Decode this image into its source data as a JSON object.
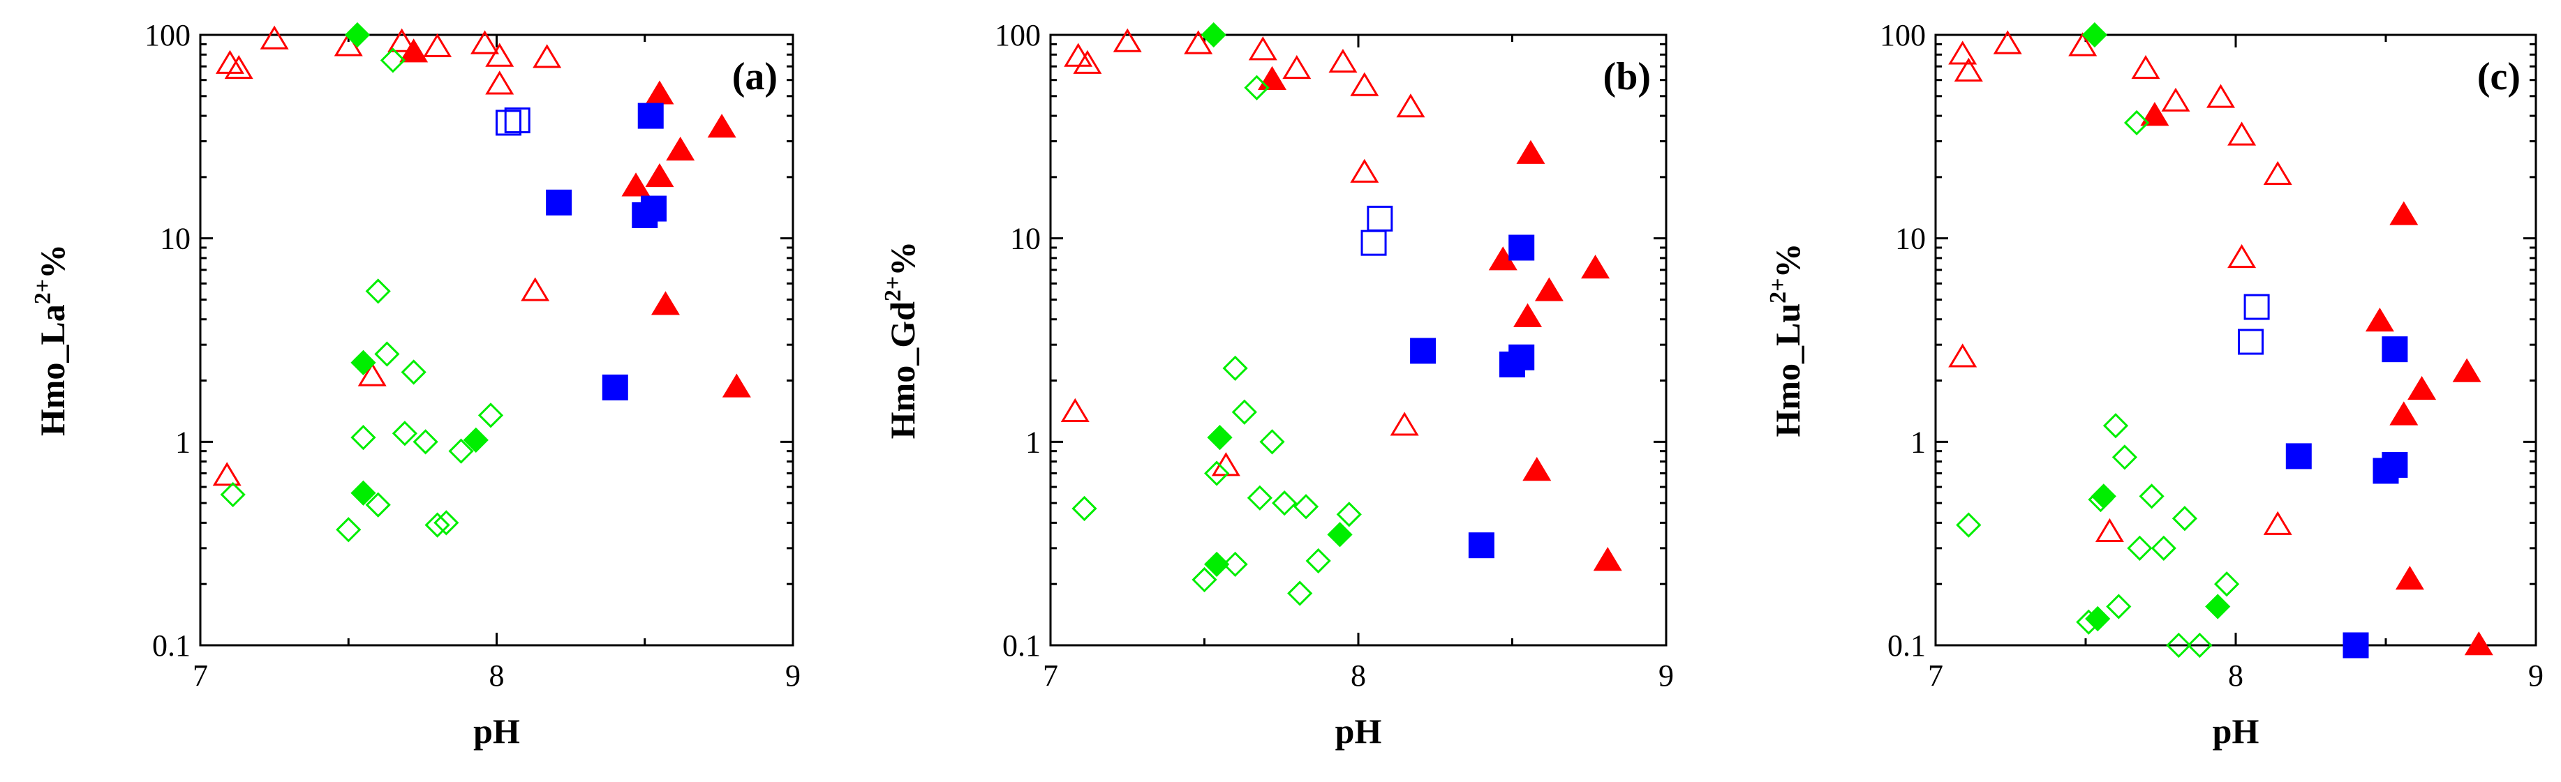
{
  "chart_data": [
    {
      "type": "scatter",
      "panel_label": "(a)",
      "xlabel": "pH",
      "ylabel_main": "Hmo_La",
      "ylabel_sup": "2+",
      "ylabel_suffix": "%",
      "xlim": [
        7,
        9
      ],
      "ylim": [
        0.1,
        100
      ],
      "yscale": "log",
      "x_ticks": [
        7,
        8,
        9
      ],
      "y_ticks": [
        0.1,
        1,
        10,
        100
      ],
      "x_tick_labels": [
        "7",
        "8",
        "9"
      ],
      "y_tick_labels": [
        "0.1",
        "1",
        "10",
        "100"
      ],
      "series": [
        {
          "name": "open-red-triangle",
          "marker": "triangle",
          "filled": false,
          "color": "#ff0000",
          "points": [
            [
              7.1,
              72
            ],
            [
              7.13,
              68
            ],
            [
              7.25,
              95
            ],
            [
              7.5,
              88
            ],
            [
              7.68,
              92
            ],
            [
              7.8,
              87
            ],
            [
              7.96,
              90
            ],
            [
              8.01,
              78
            ],
            [
              8.01,
              57
            ],
            [
              8.17,
              77
            ],
            [
              8.13,
              5.5
            ],
            [
              7.58,
              2.1
            ],
            [
              7.09,
              0.68
            ]
          ]
        },
        {
          "name": "filled-red-triangle",
          "marker": "triangle",
          "filled": true,
          "color": "#ff0000",
          "points": [
            [
              7.72,
              82
            ],
            [
              8.55,
              51
            ],
            [
              8.47,
              18
            ],
            [
              8.55,
              20
            ],
            [
              8.62,
              27
            ],
            [
              8.76,
              35
            ],
            [
              8.57,
              4.7
            ],
            [
              8.81,
              1.85
            ]
          ]
        },
        {
          "name": "open-blue-square",
          "marker": "square",
          "filled": false,
          "color": "#0000ff",
          "points": [
            [
              8.04,
              37
            ],
            [
              8.07,
              38
            ]
          ]
        },
        {
          "name": "filled-blue-square",
          "marker": "square",
          "filled": true,
          "color": "#0000ff",
          "points": [
            [
              8.52,
              40
            ],
            [
              8.21,
              15
            ],
            [
              8.5,
              13
            ],
            [
              8.53,
              14
            ],
            [
              8.4,
              1.85
            ]
          ]
        },
        {
          "name": "open-green-diamond",
          "marker": "diamond",
          "filled": false,
          "color": "#00ee00",
          "points": [
            [
              7.65,
              75
            ],
            [
              7.6,
              5.5
            ],
            [
              7.63,
              2.7
            ],
            [
              7.72,
              2.2
            ],
            [
              7.55,
              1.05
            ],
            [
              7.69,
              1.1
            ],
            [
              7.76,
              1.0
            ],
            [
              7.98,
              1.35
            ],
            [
              7.88,
              0.9
            ],
            [
              7.11,
              0.55
            ],
            [
              7.5,
              0.37
            ],
            [
              7.6,
              0.49
            ],
            [
              7.8,
              0.39
            ],
            [
              7.83,
              0.4
            ]
          ]
        },
        {
          "name": "filled-green-diamond",
          "marker": "diamond",
          "filled": true,
          "color": "#00ee00",
          "points": [
            [
              7.53,
              100
            ],
            [
              7.55,
              2.45
            ],
            [
              7.93,
              1.02
            ],
            [
              7.55,
              0.56
            ]
          ]
        }
      ]
    },
    {
      "type": "scatter",
      "panel_label": "(b)",
      "xlabel": "pH",
      "ylabel_main": "Hmo_Gd",
      "ylabel_sup": "2+",
      "ylabel_suffix": "%",
      "xlim": [
        7,
        9
      ],
      "ylim": [
        0.1,
        100
      ],
      "yscale": "log",
      "x_ticks": [
        7,
        8,
        9
      ],
      "y_ticks": [
        0.1,
        1,
        10,
        100
      ],
      "x_tick_labels": [
        "7",
        "8",
        "9"
      ],
      "y_tick_labels": [
        "0.1",
        "1",
        "10",
        "100"
      ],
      "series": [
        {
          "name": "open-red-triangle",
          "marker": "triangle",
          "filled": false,
          "color": "#ff0000",
          "points": [
            [
              7.09,
              78
            ],
            [
              7.12,
              72
            ],
            [
              7.25,
              92
            ],
            [
              7.48,
              90
            ],
            [
              7.69,
              84
            ],
            [
              7.8,
              68
            ],
            [
              7.95,
              73
            ],
            [
              8.02,
              56
            ],
            [
              8.17,
              44
            ],
            [
              8.02,
              21
            ],
            [
              8.15,
              1.2
            ],
            [
              7.57,
              0.76
            ],
            [
              7.08,
              1.4
            ]
          ]
        },
        {
          "name": "filled-red-triangle",
          "marker": "triangle",
          "filled": true,
          "color": "#ff0000",
          "points": [
            [
              7.72,
              60
            ],
            [
              8.56,
              26
            ],
            [
              8.47,
              7.8
            ],
            [
              8.77,
              7.1
            ],
            [
              8.62,
              5.5
            ],
            [
              8.55,
              4.1
            ],
            [
              8.58,
              0.72
            ],
            [
              8.81,
              0.26
            ]
          ]
        },
        {
          "name": "open-blue-square",
          "marker": "square",
          "filled": false,
          "color": "#0000ff",
          "points": [
            [
              8.05,
              9.5
            ],
            [
              8.07,
              12.5
            ]
          ]
        },
        {
          "name": "filled-blue-square",
          "marker": "square",
          "filled": true,
          "color": "#0000ff",
          "points": [
            [
              8.53,
              9.0
            ],
            [
              8.21,
              2.8
            ],
            [
              8.5,
              2.4
            ],
            [
              8.53,
              2.6
            ],
            [
              8.4,
              0.31
            ]
          ]
        },
        {
          "name": "open-green-diamond",
          "marker": "diamond",
          "filled": false,
          "color": "#00ee00",
          "points": [
            [
              7.67,
              55
            ],
            [
              7.6,
              2.3
            ],
            [
              7.63,
              1.4
            ],
            [
              7.72,
              1.0
            ],
            [
              7.54,
              0.7
            ],
            [
              7.68,
              0.53
            ],
            [
              7.76,
              0.5
            ],
            [
              7.83,
              0.48
            ],
            [
              7.97,
              0.44
            ],
            [
              7.87,
              0.26
            ],
            [
              7.11,
              0.47
            ],
            [
              7.5,
              0.21
            ],
            [
              7.6,
              0.25
            ],
            [
              7.81,
              0.18
            ]
          ]
        },
        {
          "name": "filled-green-diamond",
          "marker": "diamond",
          "filled": true,
          "color": "#00ee00",
          "points": [
            [
              7.53,
              100
            ],
            [
              7.55,
              1.05
            ],
            [
              7.94,
              0.35
            ],
            [
              7.54,
              0.25
            ]
          ]
        }
      ]
    },
    {
      "type": "scatter",
      "panel_label": "(c)",
      "xlabel": "pH",
      "ylabel_main": "Hmo_Lu",
      "ylabel_sup": "2+",
      "ylabel_suffix": "%",
      "xlim": [
        7,
        9
      ],
      "ylim": [
        0.1,
        100
      ],
      "yscale": "log",
      "x_ticks": [
        7,
        8,
        9
      ],
      "y_ticks": [
        0.1,
        1,
        10,
        100
      ],
      "x_tick_labels": [
        "7",
        "8",
        "9"
      ],
      "y_tick_labels": [
        "0.1",
        "1",
        "10",
        "100"
      ],
      "series": [
        {
          "name": "open-red-triangle",
          "marker": "triangle",
          "filled": false,
          "color": "#ff0000",
          "points": [
            [
              7.09,
              80
            ],
            [
              7.11,
              66
            ],
            [
              7.24,
              90
            ],
            [
              7.49,
              88
            ],
            [
              7.7,
              68
            ],
            [
              7.8,
              47
            ],
            [
              7.95,
              49
            ],
            [
              8.02,
              32
            ],
            [
              8.14,
              20.5
            ],
            [
              8.02,
              8.0
            ],
            [
              7.09,
              2.6
            ],
            [
              7.58,
              0.36
            ],
            [
              8.14,
              0.39
            ]
          ]
        },
        {
          "name": "filled-red-triangle",
          "marker": "triangle",
          "filled": true,
          "color": "#ff0000",
          "points": [
            [
              7.73,
              40
            ],
            [
              8.56,
              13
            ],
            [
              8.48,
              3.9
            ],
            [
              8.77,
              2.2
            ],
            [
              8.62,
              1.8
            ],
            [
              8.56,
              1.35
            ],
            [
              8.58,
              0.21
            ],
            [
              8.81,
              0.1
            ]
          ]
        },
        {
          "name": "open-blue-square",
          "marker": "square",
          "filled": false,
          "color": "#0000ff",
          "points": [
            [
              8.05,
              3.1
            ],
            [
              8.07,
              4.6
            ]
          ]
        },
        {
          "name": "filled-blue-square",
          "marker": "square",
          "filled": true,
          "color": "#0000ff",
          "points": [
            [
              8.53,
              2.85
            ],
            [
              8.21,
              0.85
            ],
            [
              8.5,
              0.72
            ],
            [
              8.53,
              0.77
            ],
            [
              8.4,
              0.1
            ]
          ]
        },
        {
          "name": "open-green-diamond",
          "marker": "diamond",
          "filled": false,
          "color": "#00ee00",
          "points": [
            [
              7.67,
              37
            ],
            [
              7.6,
              1.2
            ],
            [
              7.63,
              0.84
            ],
            [
              7.72,
              0.54
            ],
            [
              7.55,
              0.52
            ],
            [
              7.68,
              0.3
            ],
            [
              7.76,
              0.3
            ],
            [
              7.83,
              0.42
            ],
            [
              7.97,
              0.2
            ],
            [
              7.11,
              0.39
            ],
            [
              7.51,
              0.13
            ],
            [
              7.61,
              0.155
            ],
            [
              7.81,
              0.1
            ],
            [
              7.88,
              0.1
            ]
          ]
        },
        {
          "name": "filled-green-diamond",
          "marker": "diamond",
          "filled": true,
          "color": "#00ee00",
          "points": [
            [
              7.53,
              100
            ],
            [
              7.56,
              0.54
            ],
            [
              7.94,
              0.155
            ],
            [
              7.54,
              0.135
            ]
          ]
        }
      ]
    }
  ]
}
